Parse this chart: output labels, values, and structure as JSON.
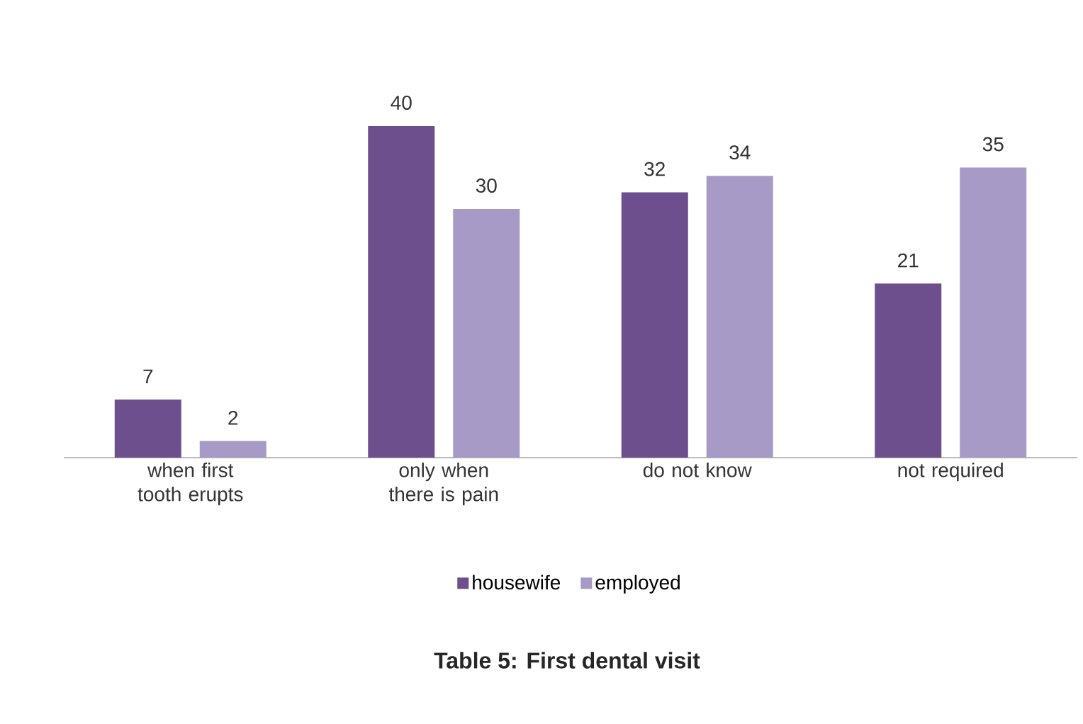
{
  "chart_data": {
    "type": "bar",
    "title": "Table 5: First dental visit",
    "categories": [
      "when first tooth erupts",
      "only when there is pain",
      "do not know",
      "not required"
    ],
    "series": [
      {
        "name": "housewife",
        "color": "#6e4f8e",
        "values": [
          7,
          40,
          32,
          21
        ]
      },
      {
        "name": "employed",
        "color": "#a89ac6",
        "values": [
          2,
          30,
          34,
          35
        ]
      }
    ],
    "data_labels": true,
    "legend": "bottom"
  }
}
